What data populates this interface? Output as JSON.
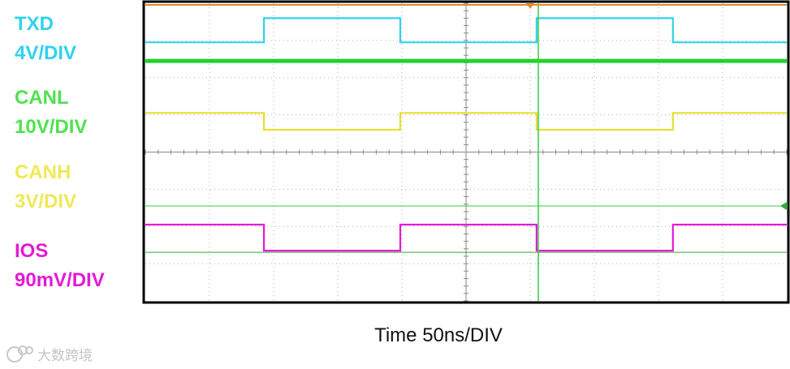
{
  "chart_data": {
    "type": "line",
    "title": "",
    "xlabel": "Time 50ns/DIV",
    "x_divisions": 10,
    "y_divisions": 8,
    "grid": true,
    "ylim": [
      0,
      8
    ],
    "series": [
      {
        "name": "TXD",
        "scale": "4V/DIV",
        "color": "#2fd3ec",
        "x": [
          0,
          0.4,
          0.4,
          2.05,
          2.05,
          3.6,
          3.6,
          5.6,
          5.6,
          7.0,
          7.0,
          8.6,
          8.6,
          10.0
        ],
        "y": [
          7.3,
          7.3,
          7.3,
          7.3,
          7.3,
          7.3,
          7.3,
          7.3,
          7.3,
          7.3,
          7.3,
          7.3,
          7.3,
          7.3
        ]
      },
      {
        "name": "CANL",
        "scale": "10V/DIV",
        "color": "#22d22e",
        "x": [
          0,
          10
        ],
        "y": [
          6.45,
          6.45
        ]
      },
      {
        "name": "CANH",
        "scale": "3V/DIV",
        "color": "#e6e02e",
        "x": [
          0,
          10
        ],
        "y": [
          4.85,
          4.85
        ]
      },
      {
        "name": "IOS",
        "scale": "90mV/DIV",
        "color": "#e21ad6",
        "x": [
          0,
          10
        ],
        "y": [
          2.05,
          2.05
        ]
      }
    ],
    "square_wave": {
      "period_div": 4.25,
      "phase_div": 1.85,
      "duty": 0.5,
      "txd": {
        "high": 7.6,
        "low": 6.95
      },
      "canh": {
        "high": 5.05,
        "low": 4.6
      },
      "ios": {
        "high": 2.05,
        "low": 1.35
      }
    }
  },
  "channels": [
    {
      "name": "TXD",
      "scale": "4V/DIV",
      "color": "#2fd3ec"
    },
    {
      "name": "CANL",
      "scale": "10V/DIV",
      "color": "#4fe24f"
    },
    {
      "name": "CANH",
      "scale": "3V/DIV",
      "color": "#eeea55"
    },
    {
      "name": "IOS",
      "scale": "90mV/DIV",
      "color": "#e21ad6"
    }
  ],
  "watermark": "大数跨境"
}
